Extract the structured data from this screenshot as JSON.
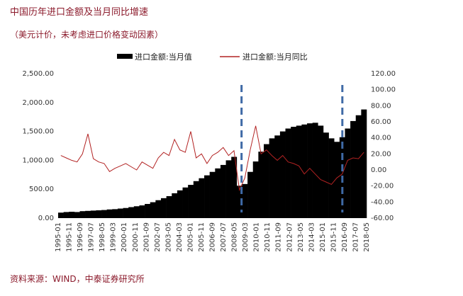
{
  "title": "中国历年进口金额及当月同比增速",
  "subtitle": "（美元计价，未考虑进口价格变动因素）",
  "source": "资料来源：WIND，中泰证券研究所",
  "chart_data": {
    "type": "bar",
    "series": [
      {
        "name": "进口金额:当月值",
        "type": "bar",
        "axis": "left",
        "color": "#000000",
        "values": [
          95,
          105,
          110,
          105,
          120,
          125,
          130,
          135,
          140,
          150,
          155,
          165,
          175,
          190,
          205,
          220,
          245,
          275,
          310,
          345,
          380,
          430,
          480,
          530,
          575,
          640,
          690,
          740,
          800,
          860,
          920,
          1000,
          1060,
          560,
          590,
          800,
          980,
          1150,
          1280,
          1380,
          1430,
          1500,
          1550,
          1580,
          1600,
          1620,
          1640,
          1650,
          1600,
          1480,
          1380,
          1320,
          1400,
          1550,
          1680,
          1780,
          1880
        ]
      },
      {
        "name": "进口金额:当月同比",
        "type": "line",
        "axis": "right",
        "color": "#b22222",
        "values": [
          18,
          15,
          12,
          10,
          20,
          45,
          14,
          10,
          8,
          -2,
          2,
          5,
          8,
          4,
          0,
          10,
          6,
          2,
          15,
          22,
          18,
          38,
          25,
          22,
          48,
          15,
          20,
          8,
          18,
          22,
          28,
          18,
          24,
          -25,
          -10,
          25,
          55,
          20,
          25,
          18,
          12,
          18,
          10,
          8,
          5,
          -5,
          2,
          -5,
          -12,
          -15,
          -18,
          -10,
          -5,
          12,
          15,
          14,
          22
        ]
      }
    ],
    "x_labels": [
      "1995-01",
      "1995-11",
      "1996-09",
      "1997-07",
      "1998-05",
      "1999-03",
      "2000-01",
      "2000-11",
      "2001-09",
      "2002-07",
      "2003-05",
      "2004-03",
      "2005-01",
      "2005-11",
      "2006-09",
      "2007-07",
      "2008-05",
      "2009-03",
      "2010-01",
      "2010-11",
      "2011-09",
      "2012-07",
      "2013-05",
      "2014-03",
      "2015-01",
      "2015-11",
      "2016-09",
      "2017-07",
      "2018-05"
    ],
    "y_left": {
      "min": 0,
      "max": 2500,
      "ticks": [
        "0.00",
        "500.00",
        "1,000.00",
        "1,500.00",
        "2,000.00",
        "2,500.00"
      ]
    },
    "y_right": {
      "min": -60,
      "max": 120,
      "ticks": [
        "-60.00",
        "-40.00",
        "-20.00",
        "0.00",
        "20.00",
        "40.00",
        "60.00",
        "80.00",
        "100.00",
        "120.00"
      ]
    },
    "reference_lines": [
      "2008-11",
      "2015-11"
    ],
    "legend_position": "top-center"
  }
}
